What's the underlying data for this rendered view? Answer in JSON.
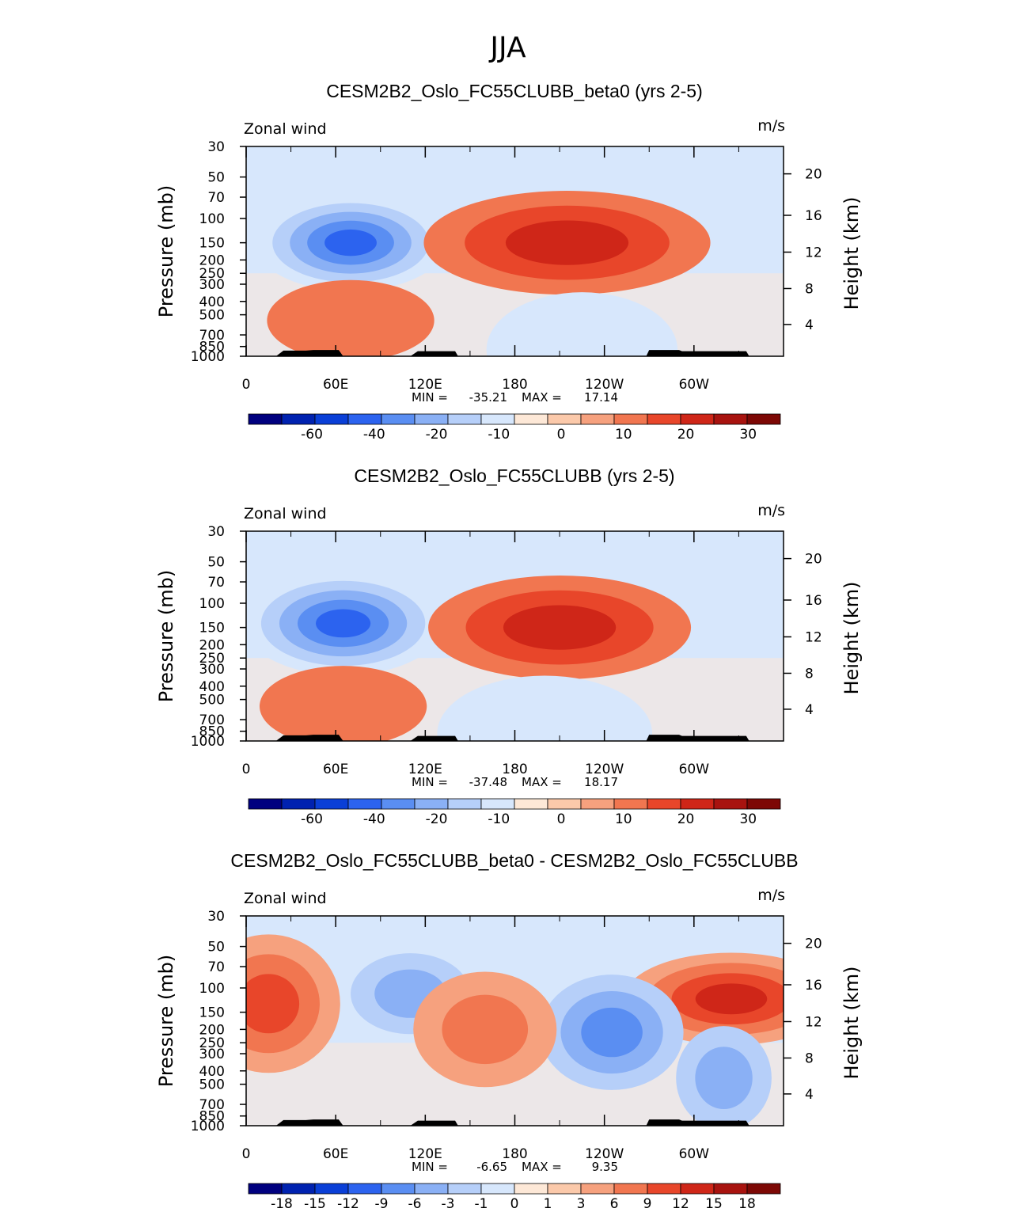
{
  "page_title": "JJA",
  "chart_data": [
    {
      "type": "heatmap",
      "title": "CESM2B2_Oslo_FC55CLUBB_beta0 (yrs 2-5)",
      "left_label": "Zonal wind",
      "units_label": "m/s",
      "ylabel": "Pressure (mb)",
      "ylabel_right": "Height (km)",
      "x_ticks": [
        "0",
        "60E",
        "120E",
        "180",
        "120W",
        "60W"
      ],
      "y_ticks": [
        "30",
        "50",
        "70",
        "100",
        "150",
        "200",
        "250",
        "300",
        "400",
        "500",
        "700",
        "850",
        "1000"
      ],
      "y_right_ticks": [
        "20",
        "16",
        "12",
        "8",
        "4"
      ],
      "min_label": "MIN =",
      "min_value": "-35.21",
      "max_label": "MAX =",
      "max_value": "17.14",
      "colorbar_ticks": [
        "-60",
        "-40",
        "-20",
        "-10",
        "0",
        "10",
        "20",
        "30"
      ],
      "colorbar_levels": [
        -60,
        -50,
        -40,
        -30,
        -20,
        -15,
        -10,
        -5,
        0,
        5,
        10,
        15,
        20,
        25,
        30
      ],
      "features": [
        {
          "lon": 70,
          "p": 150,
          "value": -35,
          "sx": 40,
          "sy": 0.42
        },
        {
          "lon": 215,
          "p": 150,
          "value": 17,
          "sx": 60,
          "sy": 0.45
        },
        {
          "lon": 225,
          "p": 900,
          "value": -6,
          "sx": 40,
          "sy": 0.5
        },
        {
          "lon": 70,
          "p": 550,
          "value": 9,
          "sx": 35,
          "sy": 0.35
        }
      ]
    },
    {
      "type": "heatmap",
      "title": "CESM2B2_Oslo_FC55CLUBB (yrs 2-5)",
      "left_label": "Zonal wind",
      "units_label": "m/s",
      "ylabel": "Pressure (mb)",
      "ylabel_right": "Height (km)",
      "x_ticks": [
        "0",
        "60E",
        "120E",
        "180",
        "120W",
        "60W"
      ],
      "y_ticks": [
        "30",
        "50",
        "70",
        "100",
        "150",
        "200",
        "250",
        "300",
        "400",
        "500",
        "700",
        "850",
        "1000"
      ],
      "y_right_ticks": [
        "20",
        "16",
        "12",
        "8",
        "4"
      ],
      "min_label": "MIN =",
      "min_value": "-37.48",
      "max_label": "MAX =",
      "max_value": "18.17",
      "colorbar_ticks": [
        "-60",
        "-40",
        "-20",
        "-10",
        "0",
        "10",
        "20",
        "30"
      ],
      "colorbar_levels": [
        -60,
        -50,
        -40,
        -30,
        -20,
        -15,
        -10,
        -5,
        0,
        5,
        10,
        15,
        20,
        25,
        30
      ],
      "features": [
        {
          "lon": 65,
          "p": 140,
          "value": -37,
          "sx": 42,
          "sy": 0.45
        },
        {
          "lon": 210,
          "p": 150,
          "value": 18,
          "sx": 55,
          "sy": 0.45
        },
        {
          "lon": 200,
          "p": 880,
          "value": -7,
          "sx": 45,
          "sy": 0.5
        },
        {
          "lon": 65,
          "p": 560,
          "value": 9,
          "sx": 35,
          "sy": 0.35
        }
      ]
    },
    {
      "type": "heatmap",
      "title": "CESM2B2_Oslo_FC55CLUBB_beta0 - CESM2B2_Oslo_FC55CLUBB",
      "left_label": "Zonal wind",
      "units_label": "m/s",
      "ylabel": "Pressure (mb)",
      "ylabel_right": "Height (km)",
      "x_ticks": [
        "0",
        "60E",
        "120E",
        "180",
        "120W",
        "60W"
      ],
      "y_ticks": [
        "30",
        "50",
        "70",
        "100",
        "150",
        "200",
        "250",
        "300",
        "400",
        "500",
        "700",
        "850",
        "1000"
      ],
      "y_right_ticks": [
        "20",
        "16",
        "12",
        "8",
        "4"
      ],
      "min_label": "MIN =",
      "min_value": "-6.65",
      "max_label": "MAX =",
      "max_value": "9.35",
      "colorbar_ticks": [
        "-18",
        "-15",
        "-12",
        "-9",
        "-6",
        "-3",
        "-1",
        "0",
        "1",
        "3",
        "6",
        "9",
        "12",
        "15",
        "18"
      ],
      "colorbar_levels": [
        -18,
        -15,
        -12,
        -9,
        -6,
        -3,
        -1,
        0,
        1,
        3,
        6,
        9,
        12,
        15,
        18
      ],
      "features": [
        {
          "lon": 15,
          "p": 130,
          "value": 8,
          "sx": 30,
          "sy": 0.6
        },
        {
          "lon": 325,
          "p": 120,
          "value": 9,
          "sx": 45,
          "sy": 0.4
        },
        {
          "lon": 245,
          "p": 210,
          "value": -6.5,
          "sx": 30,
          "sy": 0.5
        },
        {
          "lon": 110,
          "p": 110,
          "value": -5,
          "sx": 25,
          "sy": 0.35
        },
        {
          "lon": 160,
          "p": 200,
          "value": 4,
          "sx": 30,
          "sy": 0.5
        },
        {
          "lon": 320,
          "p": 450,
          "value": -4,
          "sx": 20,
          "sy": 0.45
        }
      ]
    }
  ],
  "colors": {
    "palette": [
      "#00007f",
      "#0022b0",
      "#0a3fd7",
      "#2c63ef",
      "#5a8ef2",
      "#8ab0f5",
      "#b6cff9",
      "#d7e7fc",
      "#fde8d7",
      "#fbc9aa",
      "#f6a17e",
      "#f17650",
      "#e8462a",
      "#cf2618",
      "#a8130f",
      "#7d0805"
    ],
    "topo": "#000000"
  }
}
